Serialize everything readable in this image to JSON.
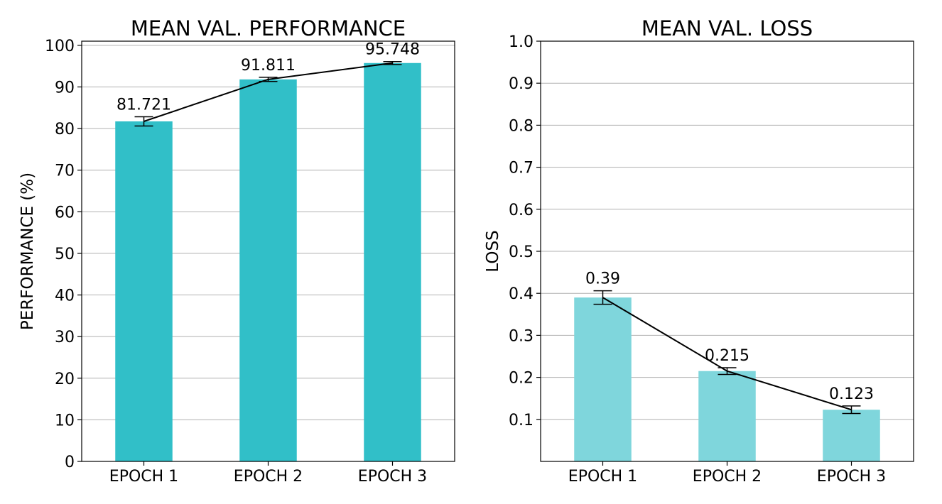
{
  "chart_data": [
    {
      "type": "bar",
      "title": "MEAN VAL. PERFORMANCE",
      "xlabel": "",
      "ylabel": "PERFORMANCE (%)",
      "categories": [
        "EPOCH 1",
        "EPOCH 2",
        "EPOCH 3"
      ],
      "values": [
        81.721,
        91.811,
        95.748
      ],
      "value_labels": [
        "81.721",
        "91.811",
        "95.748"
      ],
      "error": [
        1.1,
        0.5,
        0.35
      ],
      "ylim": [
        0,
        101
      ],
      "yticks": [
        0,
        10,
        20,
        30,
        40,
        50,
        60,
        70,
        80,
        90,
        100
      ],
      "ytick_labels": [
        "0",
        "10",
        "20",
        "30",
        "40",
        "50",
        "60",
        "70",
        "80",
        "90",
        "100"
      ],
      "grid": true,
      "bar_color": "#31bfc8",
      "line_color": "#000000"
    },
    {
      "type": "bar",
      "title": "MEAN VAL. LOSS",
      "xlabel": "",
      "ylabel": "LOSS",
      "categories": [
        "EPOCH 1",
        "EPOCH 2",
        "EPOCH 3"
      ],
      "values": [
        0.39,
        0.215,
        0.123
      ],
      "value_labels": [
        "0.39",
        "0.215",
        "0.123"
      ],
      "error": [
        0.016,
        0.008,
        0.009
      ],
      "ylim": [
        0,
        1.0
      ],
      "yticks": [
        0.1,
        0.2,
        0.3,
        0.4,
        0.5,
        0.6,
        0.7,
        0.8,
        0.9,
        1.0
      ],
      "ytick_labels": [
        "0.1",
        "0.2",
        "0.3",
        "0.4",
        "0.5",
        "0.6",
        "0.7",
        "0.8",
        "0.9",
        "1.0"
      ],
      "grid": true,
      "bar_color": "#7fd6dc",
      "line_color": "#000000"
    }
  ]
}
